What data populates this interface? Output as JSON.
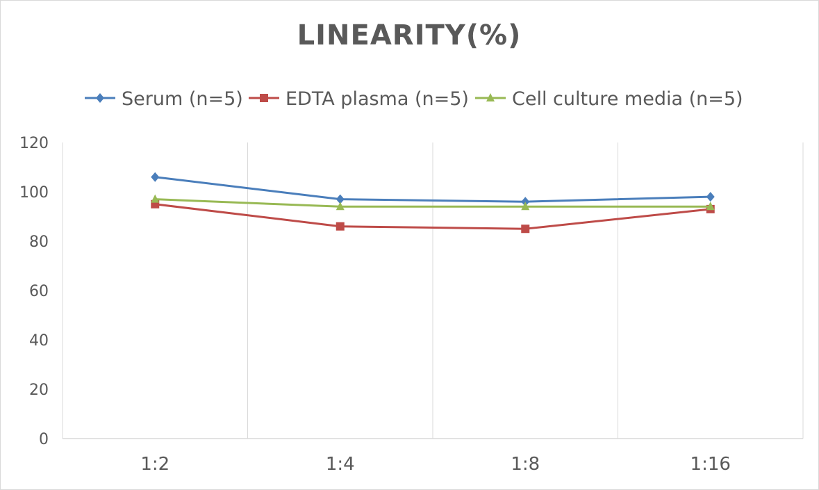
{
  "chart_data": {
    "type": "line",
    "title": "LINEARITY(%)",
    "xlabel": "",
    "ylabel": "",
    "categories": [
      "1:2",
      "1:4",
      "1:8",
      "1:16"
    ],
    "ylim": [
      0,
      120
    ],
    "yticks": [
      0,
      20,
      40,
      60,
      80,
      100,
      120
    ],
    "grid": "vertical",
    "legend": "top",
    "series": [
      {
        "name": "Serum (n=5)",
        "values": [
          106,
          97,
          96,
          98
        ],
        "color": "#4a7ebb",
        "marker": "diamond"
      },
      {
        "name": "EDTA plasma (n=5)",
        "values": [
          95,
          86,
          85,
          93
        ],
        "color": "#be4b48",
        "marker": "square"
      },
      {
        "name": "Cell culture media (n=5)",
        "values": [
          97,
          94,
          94,
          94
        ],
        "color": "#98b954",
        "marker": "triangle"
      }
    ]
  }
}
